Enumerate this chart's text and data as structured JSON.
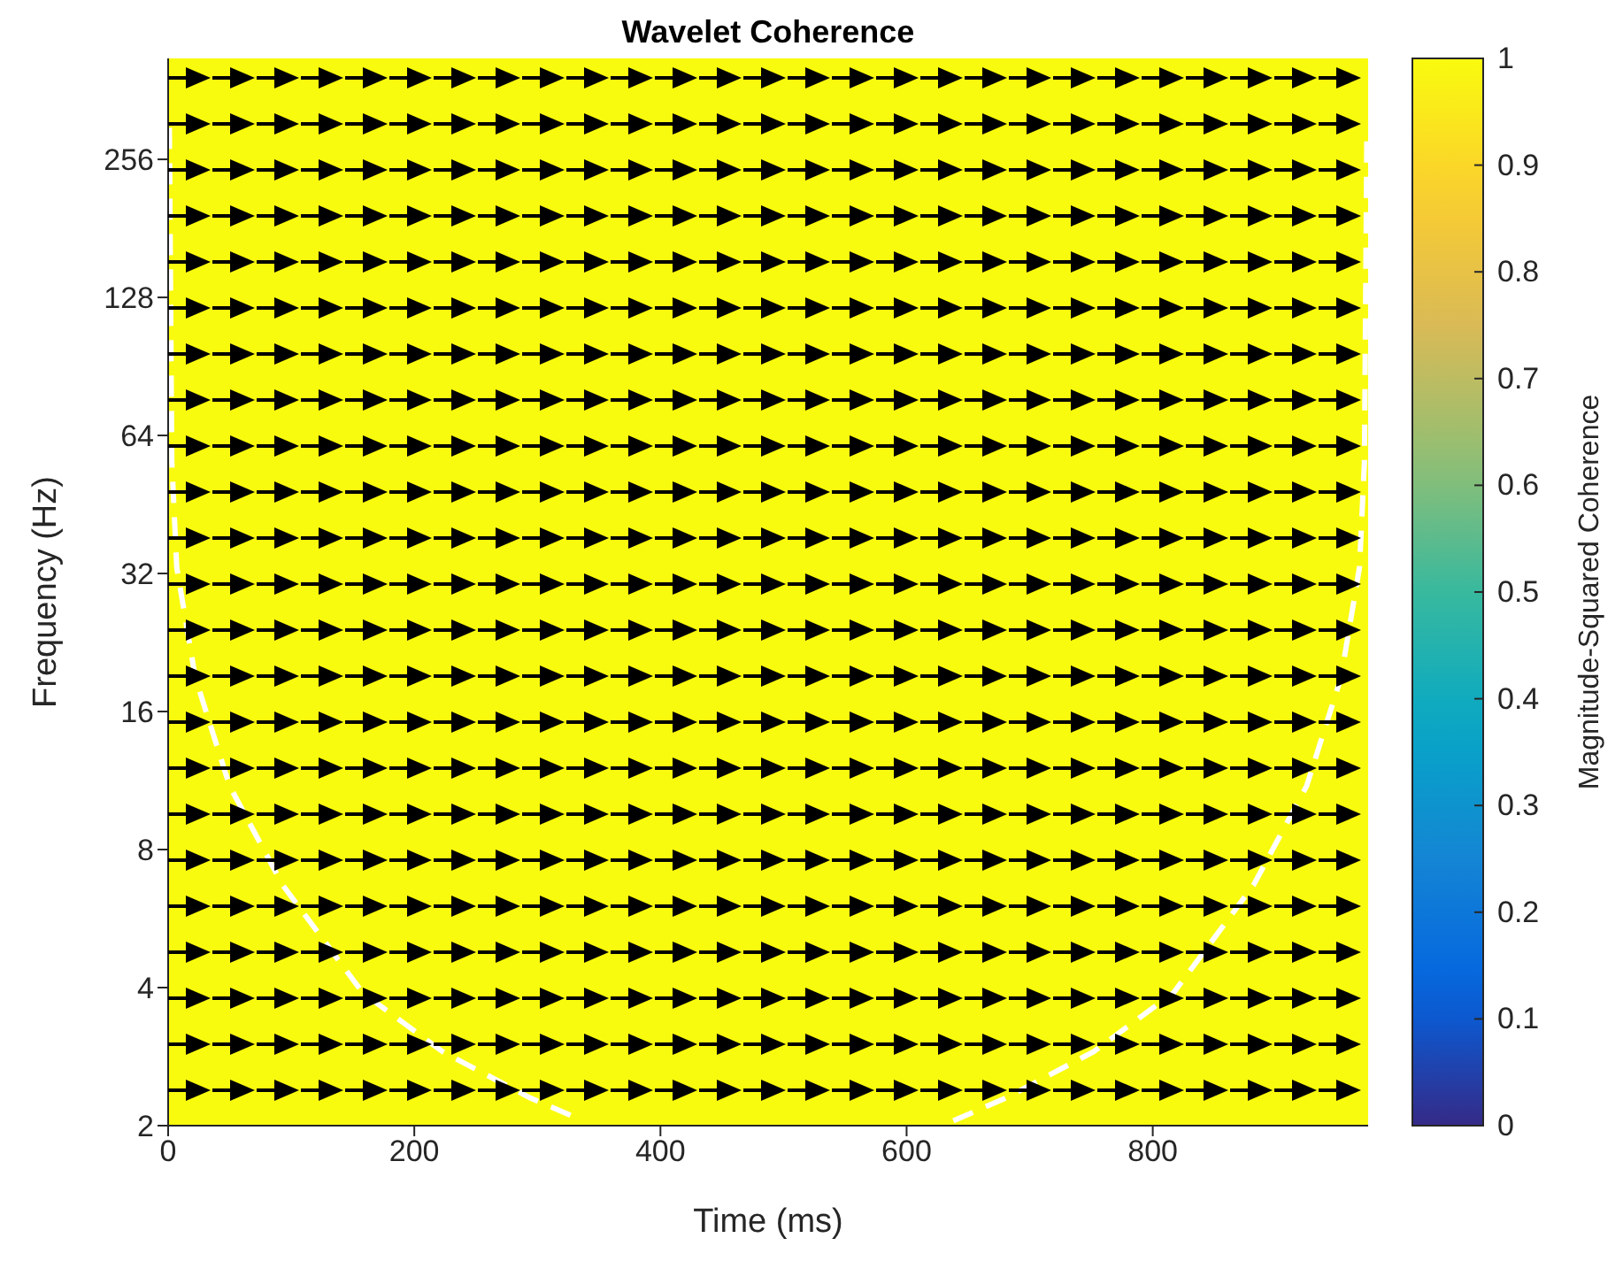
{
  "chart_data": {
    "type": "heatmap",
    "title": "Wavelet Coherence",
    "xlabel": "Time (ms)",
    "ylabel": "Frequency (Hz)",
    "clabel": "Magnitude-Squared Coherence",
    "xlim": [
      0,
      975
    ],
    "xticks": [
      0,
      200,
      400,
      600,
      800
    ],
    "ylim": [
      2,
      425
    ],
    "yticks": [
      2,
      4,
      8,
      16,
      32,
      64,
      128,
      256
    ],
    "log": "y",
    "grid": false,
    "cells": [
      [
        1
      ]
    ],
    "clim": [
      0,
      1
    ],
    "cticks": [
      0,
      0.1,
      0.2,
      0.3,
      0.4,
      0.5,
      0.6,
      0.7,
      0.8,
      0.9,
      1
    ],
    "series": [
      {
        "type": "line",
        "color": "#ffffff",
        "line_style": "dashed",
        "x": [
          1,
          3,
          7,
          22,
          50,
          93,
          158,
          223,
          294,
          337,
          null,
          638,
          681,
          752,
          817,
          882,
          925,
          953,
          968,
          972,
          974
        ],
        "values": [
          300,
          56,
          33,
          19,
          11,
          6.7,
          3.9,
          2.9,
          2.3,
          2.05,
          null,
          2.05,
          2.3,
          2.9,
          3.9,
          6.7,
          11,
          19,
          33,
          56,
          300
        ]
      }
    ]
  }
}
